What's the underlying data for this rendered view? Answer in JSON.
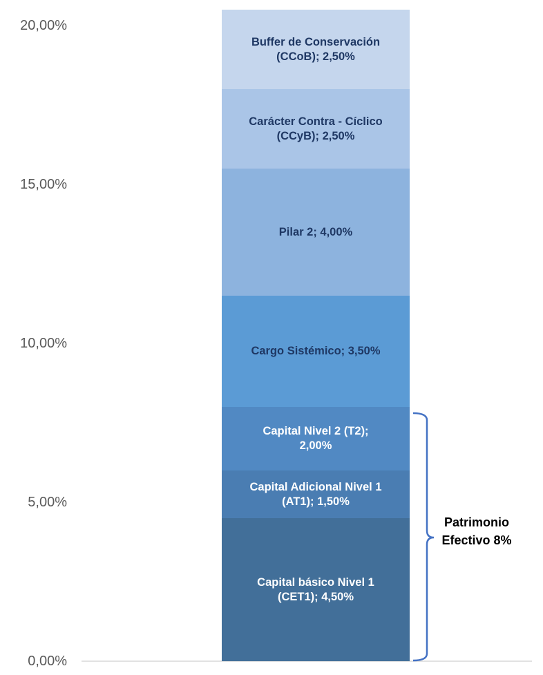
{
  "chart_data": {
    "type": "stacked_bar",
    "ylim": [
      0,
      20
    ],
    "yticks": [
      {
        "value": 0,
        "label": "0,00%"
      },
      {
        "value": 5,
        "label": "5,00%"
      },
      {
        "value": 10,
        "label": "10,00%"
      },
      {
        "value": 15,
        "label": "15,00%"
      },
      {
        "value": 20,
        "label": "20,00%"
      }
    ],
    "series": [
      {
        "color": "#426f99",
        "label_color": "#ffffff",
        "values": [
          4.5
        ],
        "value_labels": [
          "Capital básico Nivel 1 (CET1); 4,50%"
        ]
      },
      {
        "color": "#4a7db2",
        "label_color": "#ffffff",
        "values": [
          1.5
        ],
        "value_labels": [
          "Capital Adicional Nivel 1 (AT1); 1,50%"
        ]
      },
      {
        "color": "#5189c3",
        "label_color": "#ffffff",
        "values": [
          2.0
        ],
        "value_labels": [
          "Capital Nivel 2 (T2); 2,00%"
        ]
      },
      {
        "color": "#5b9bd5",
        "label_color": "#1f3864",
        "values": [
          3.5
        ],
        "value_labels": [
          "Cargo Sistémico; 3,50%"
        ]
      },
      {
        "color": "#8db3de",
        "label_color": "#1f3864",
        "values": [
          4.0
        ],
        "value_labels": [
          "Pilar 2; 4,00%"
        ]
      },
      {
        "color": "#aac5e7",
        "label_color": "#1f3864",
        "values": [
          2.5
        ],
        "value_labels": [
          "Carácter Contra - Cíclico (CCyB); 2,50%"
        ]
      },
      {
        "color": "#c5d6ed",
        "label_color": "#1f3864",
        "values": [
          2.5
        ],
        "value_labels": [
          "Buffer de Conservación (CCoB); 2,50%"
        ]
      }
    ],
    "annotation": "Patrimonio Efectivo 8%"
  }
}
